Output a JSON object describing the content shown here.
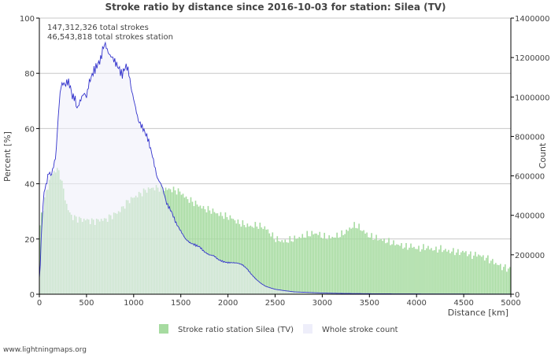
{
  "chart_data": {
    "type": "area",
    "title": "Stroke ratio by distance since 2016-10-03 for station: Silea (TV)",
    "annotations": [
      "147,312,326 total strokes",
      "46,543,818 total strokes station"
    ],
    "xlabel": "Distance   [km]",
    "ylabel_left": "Percent   [%]",
    "ylabel_right": "Count",
    "xlim": [
      0,
      5000
    ],
    "ylim_left": [
      0,
      100
    ],
    "ylim_right": [
      0,
      1400000
    ],
    "grid": true,
    "x_ticks": [
      "0",
      "500",
      "1000",
      "1500",
      "2000",
      "2500",
      "3000",
      "3500",
      "4000",
      "4500",
      "5000"
    ],
    "y_left_ticks": [
      "0",
      "20",
      "40",
      "60",
      "80",
      "100"
    ],
    "y_right_ticks": [
      "0",
      "200000",
      "400000",
      "600000",
      "800000",
      "1000000",
      "1200000",
      "1400000"
    ],
    "legend": {
      "position": "bottom",
      "items": [
        "Stroke ratio station Silea (TV)",
        "Whole stroke count"
      ]
    },
    "series": [
      {
        "name": "Stroke ratio station Silea (TV)",
        "axis": "left",
        "color": "#a6dba0",
        "x": [
          0,
          25,
          50,
          75,
          100,
          125,
          150,
          175,
          200,
          225,
          250,
          275,
          300,
          350,
          400,
          450,
          500,
          550,
          600,
          650,
          700,
          750,
          800,
          850,
          900,
          950,
          1000,
          1050,
          1100,
          1150,
          1200,
          1250,
          1300,
          1350,
          1400,
          1450,
          1500,
          1550,
          1600,
          1650,
          1700,
          1750,
          1800,
          1850,
          1900,
          1950,
          2000,
          2050,
          2100,
          2150,
          2200,
          2250,
          2300,
          2350,
          2400,
          2450,
          2500,
          2550,
          2600,
          2650,
          2700,
          2750,
          2800,
          2850,
          2900,
          2950,
          3000,
          3050,
          3100,
          3150,
          3200,
          3250,
          3300,
          3350,
          3400,
          3450,
          3500,
          3550,
          3600,
          3650,
          3700,
          3750,
          3800,
          3850,
          3900,
          3950,
          4000,
          4050,
          4100,
          4150,
          4200,
          4250,
          4300,
          4350,
          4400,
          4450,
          4500,
          4550,
          4600,
          4650,
          4700,
          4750,
          4800,
          4850,
          4900,
          4950,
          5000
        ],
        "values": [
          22,
          29,
          33,
          37,
          40,
          43,
          44,
          45,
          45,
          43,
          39,
          35,
          31,
          28,
          27.5,
          27,
          27,
          26.5,
          26.5,
          27,
          27,
          28,
          29,
          30,
          32,
          34,
          35,
          36,
          37,
          38,
          38.5,
          38.5,
          38.5,
          38,
          38,
          37.5,
          37,
          35,
          34,
          33,
          32,
          31,
          30.5,
          30,
          29,
          28.5,
          28,
          27.5,
          26,
          25.5,
          25,
          24.5,
          25,
          24.5,
          24,
          22,
          20,
          19.5,
          19,
          19.5,
          20,
          20.5,
          21,
          21.5,
          22,
          22,
          21,
          20.5,
          20.5,
          21,
          21.5,
          22.5,
          24,
          25,
          24,
          22.5,
          21,
          20.5,
          20,
          19.5,
          19,
          18.5,
          18,
          17.5,
          17,
          17.5,
          16.5,
          16.5,
          17,
          16.5,
          16,
          16.5,
          16,
          15.5,
          15.5,
          15,
          15.5,
          14.5,
          14,
          14.5,
          13.5,
          13,
          12,
          11,
          10,
          9.5,
          9
        ]
      },
      {
        "name": "Whole stroke count",
        "axis": "right",
        "color": "#eeeefa",
        "line_color": "#3333cc",
        "x": [
          0,
          10,
          25,
          50,
          75,
          100,
          125,
          150,
          175,
          200,
          225,
          250,
          275,
          300,
          325,
          350,
          375,
          400,
          425,
          450,
          475,
          500,
          525,
          550,
          575,
          600,
          625,
          650,
          675,
          700,
          725,
          750,
          775,
          800,
          825,
          850,
          875,
          900,
          925,
          950,
          975,
          1000,
          1050,
          1100,
          1150,
          1200,
          1250,
          1300,
          1350,
          1400,
          1450,
          1500,
          1550,
          1600,
          1650,
          1700,
          1750,
          1800,
          1850,
          1900,
          1950,
          2000,
          2050,
          2100,
          2150,
          2200,
          2250,
          2300,
          2350,
          2400,
          2450,
          2500,
          2600,
          2700,
          2800,
          2900,
          3000,
          3100,
          3200,
          3300,
          3400,
          3500,
          3700,
          4000,
          4500,
          5000
        ],
        "values": [
          80000,
          150000,
          350000,
          520000,
          560000,
          620000,
          600000,
          650000,
          700000,
          900000,
          1050000,
          1070000,
          1060000,
          1080000,
          1060000,
          1000000,
          1000000,
          940000,
          970000,
          1000000,
          1020000,
          1000000,
          1070000,
          1100000,
          1130000,
          1150000,
          1170000,
          1190000,
          1250000,
          1270000,
          1230000,
          1210000,
          1200000,
          1180000,
          1160000,
          1140000,
          1110000,
          1140000,
          1160000,
          1120000,
          1040000,
          990000,
          880000,
          840000,
          790000,
          700000,
          590000,
          550000,
          460000,
          420000,
          360000,
          320000,
          280000,
          260000,
          250000,
          240000,
          215000,
          200000,
          195000,
          175000,
          165000,
          160000,
          160000,
          158000,
          150000,
          130000,
          100000,
          75000,
          55000,
          40000,
          32000,
          25000,
          18000,
          12000,
          10000,
          8000,
          6000,
          5000,
          4000,
          3500,
          3000,
          2500,
          2000,
          1500,
          1000,
          500
        ]
      }
    ]
  },
  "footer": {
    "text": "www.lightningmaps.org"
  }
}
